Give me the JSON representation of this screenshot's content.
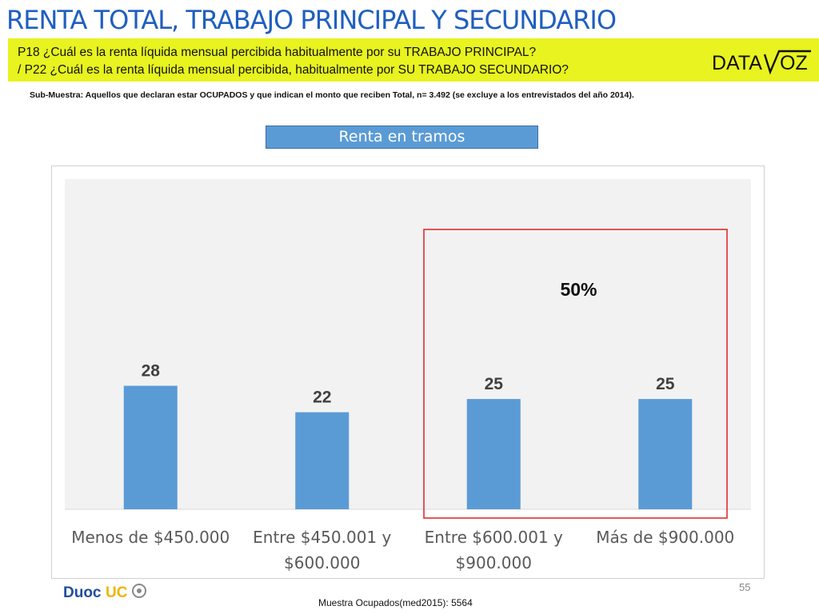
{
  "header": {
    "title": "RENTA TOTAL, TRABAJO PRINCIPAL Y SECUNDARIO",
    "question_1": "P18 ¿Cuál es la renta líquida mensual percibida habitualmente por su TRABAJO PRINCIPAL?",
    "question_2": "/ P22 ¿Cuál es la  renta líquida mensual percibida, habitualmente por  SU TRABAJO SECUNDARIO?",
    "logo_text_1": "DATA",
    "logo_text_2": "OZ"
  },
  "subtitle": "Sub-Muestra: Aquellos que declaran estar OCUPADOS y que indican el monto que reciben Total, n= 3.492 (se excluye a los entrevistados del año 2014).",
  "section_label": "Renta en tramos",
  "chart_data": {
    "type": "bar",
    "categories": [
      [
        "Menos de $450.000"
      ],
      [
        "Entre $450.001 y",
        "$600.000"
      ],
      [
        "Entre $600.001 y",
        "$900.000"
      ],
      [
        "Más de $900.000"
      ]
    ],
    "values": [
      28,
      22,
      25,
      25
    ],
    "data_labels": [
      "28",
      "22",
      "25",
      "25"
    ],
    "bar_color": "#5b9bd5",
    "ylim": [
      0,
      60
    ],
    "highlight": {
      "categories": [
        2,
        3
      ],
      "label": "50%",
      "color": "#e02020"
    }
  },
  "footer": {
    "page_number": "55",
    "sample": "Muestra Ocupados(med2015): 5564",
    "duoc_text_1": "Duoc",
    "duoc_text_2": "UC"
  },
  "colors": {
    "title": "#1f5fbf",
    "question_band": "#e8f31f",
    "plot_bg": "#f2f2f2"
  }
}
